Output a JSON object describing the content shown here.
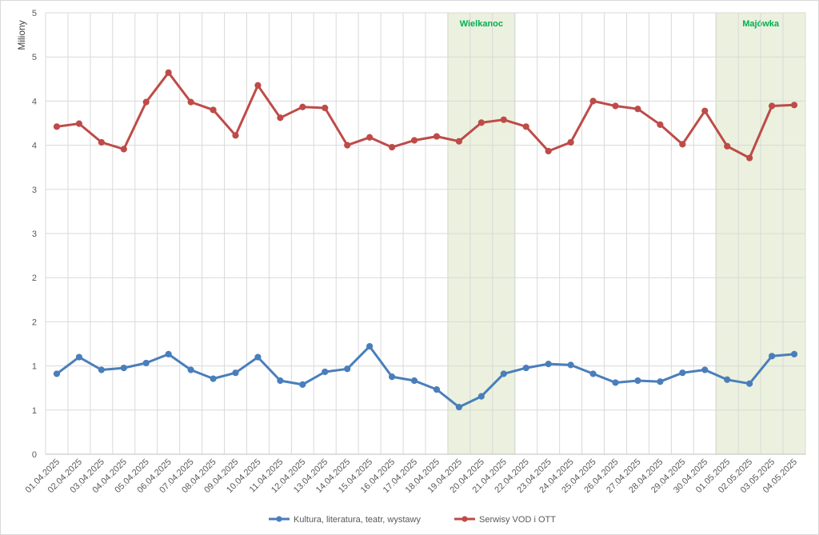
{
  "chart_data": {
    "type": "line",
    "ylabel": "Miliony",
    "y_tick_labels": [
      "0",
      "1",
      "1",
      "2",
      "2",
      "3",
      "3",
      "4",
      "4",
      "5"
    ],
    "ylim": [
      0,
      4.5
    ],
    "grid": true,
    "legend_position": "bottom",
    "colors": {
      "series1": "#4a7ebb",
      "series2": "#be4b48",
      "band_fill": "#ebf1de",
      "band_label": "#00b050",
      "grid": "#d9d9d9"
    },
    "categories": [
      "01.04.2025",
      "02.04.2025",
      "03.04.2025",
      "04.04.2025",
      "05.04.2025",
      "06.04.2025",
      "07.04.2025",
      "08.04.2025",
      "09.04.2025",
      "10.04.2025",
      "11.04.2025",
      "12.04.2025",
      "13.04.2025",
      "14.04.2025",
      "15.04.2025",
      "16.04.2025",
      "17.04.2025",
      "18.04.2025",
      "19.04.2025",
      "20.04.2025",
      "21.04.2025",
      "22.04.2025",
      "23.04.2025",
      "24.04.2025",
      "25.04.2025",
      "26.04.2025",
      "27.04.2025",
      "28.04.2025",
      "29.04.2025",
      "30.04.2025",
      "01.05.2025",
      "02.05.2025",
      "03.05.2025",
      "04.05.2025"
    ],
    "series": [
      {
        "name": "Kultura, literatura, teatr, wystawy",
        "values": [
          0.82,
          0.99,
          0.86,
          0.88,
          0.93,
          1.02,
          0.86,
          0.77,
          0.83,
          0.99,
          0.75,
          0.71,
          0.84,
          0.87,
          1.1,
          0.79,
          0.75,
          0.66,
          0.48,
          0.59,
          0.82,
          0.88,
          0.92,
          0.91,
          0.82,
          0.73,
          0.75,
          0.74,
          0.83,
          0.86,
          0.76,
          0.72,
          1.0,
          1.02
        ]
      },
      {
        "name": "Serwisy VOD i OTT",
        "values": [
          3.34,
          3.37,
          3.18,
          3.11,
          3.59,
          3.89,
          3.59,
          3.51,
          3.25,
          3.76,
          3.43,
          3.54,
          3.53,
          3.15,
          3.23,
          3.13,
          3.2,
          3.24,
          3.19,
          3.38,
          3.41,
          3.34,
          3.09,
          3.18,
          3.6,
          3.55,
          3.52,
          3.36,
          3.16,
          3.5,
          3.14,
          3.02,
          3.55,
          3.56
        ]
      }
    ],
    "bands": [
      {
        "label": "Wielkanoc",
        "from": "19.04.2025",
        "to": "21.04.2025"
      },
      {
        "label": "Majówka",
        "from": "01.05.2025",
        "to": "04.05.2025"
      }
    ]
  }
}
